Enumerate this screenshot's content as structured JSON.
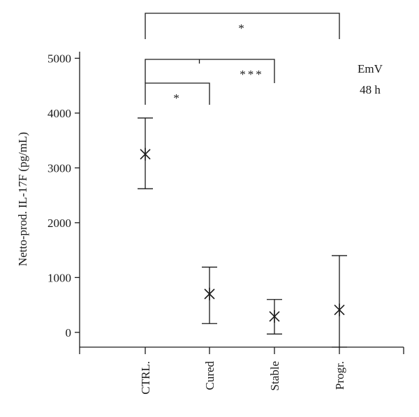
{
  "chart_data": {
    "type": "scatter",
    "ylabel": "Netto-prod. IL-17F (pg/mL)",
    "xlabel": "",
    "ylim": [
      -270,
      5120
    ],
    "yticks": [
      0,
      1000,
      2000,
      3000,
      4000,
      5000
    ],
    "categories": [
      "CTRL.",
      "Cured",
      "Stable",
      "Progr."
    ],
    "series": [
      {
        "marker": "asterisk",
        "values": [
          3250,
          700,
          290,
          410
        ],
        "error_low": [
          2620,
          160,
          -30,
          -270
        ],
        "error_high": [
          3910,
          1190,
          600,
          1400
        ]
      }
    ],
    "annotations": {
      "line1": "EmV",
      "line2": "48 h"
    },
    "significance": [
      {
        "from": "CTRL.",
        "to": "Progr.",
        "label": "*"
      },
      {
        "from": "CTRL.",
        "to": "Stable",
        "label": "***"
      },
      {
        "from": "CTRL.",
        "to": "Cured",
        "label": "*"
      }
    ],
    "grid": false,
    "colors": {
      "ink": "#1a1a1a"
    }
  }
}
